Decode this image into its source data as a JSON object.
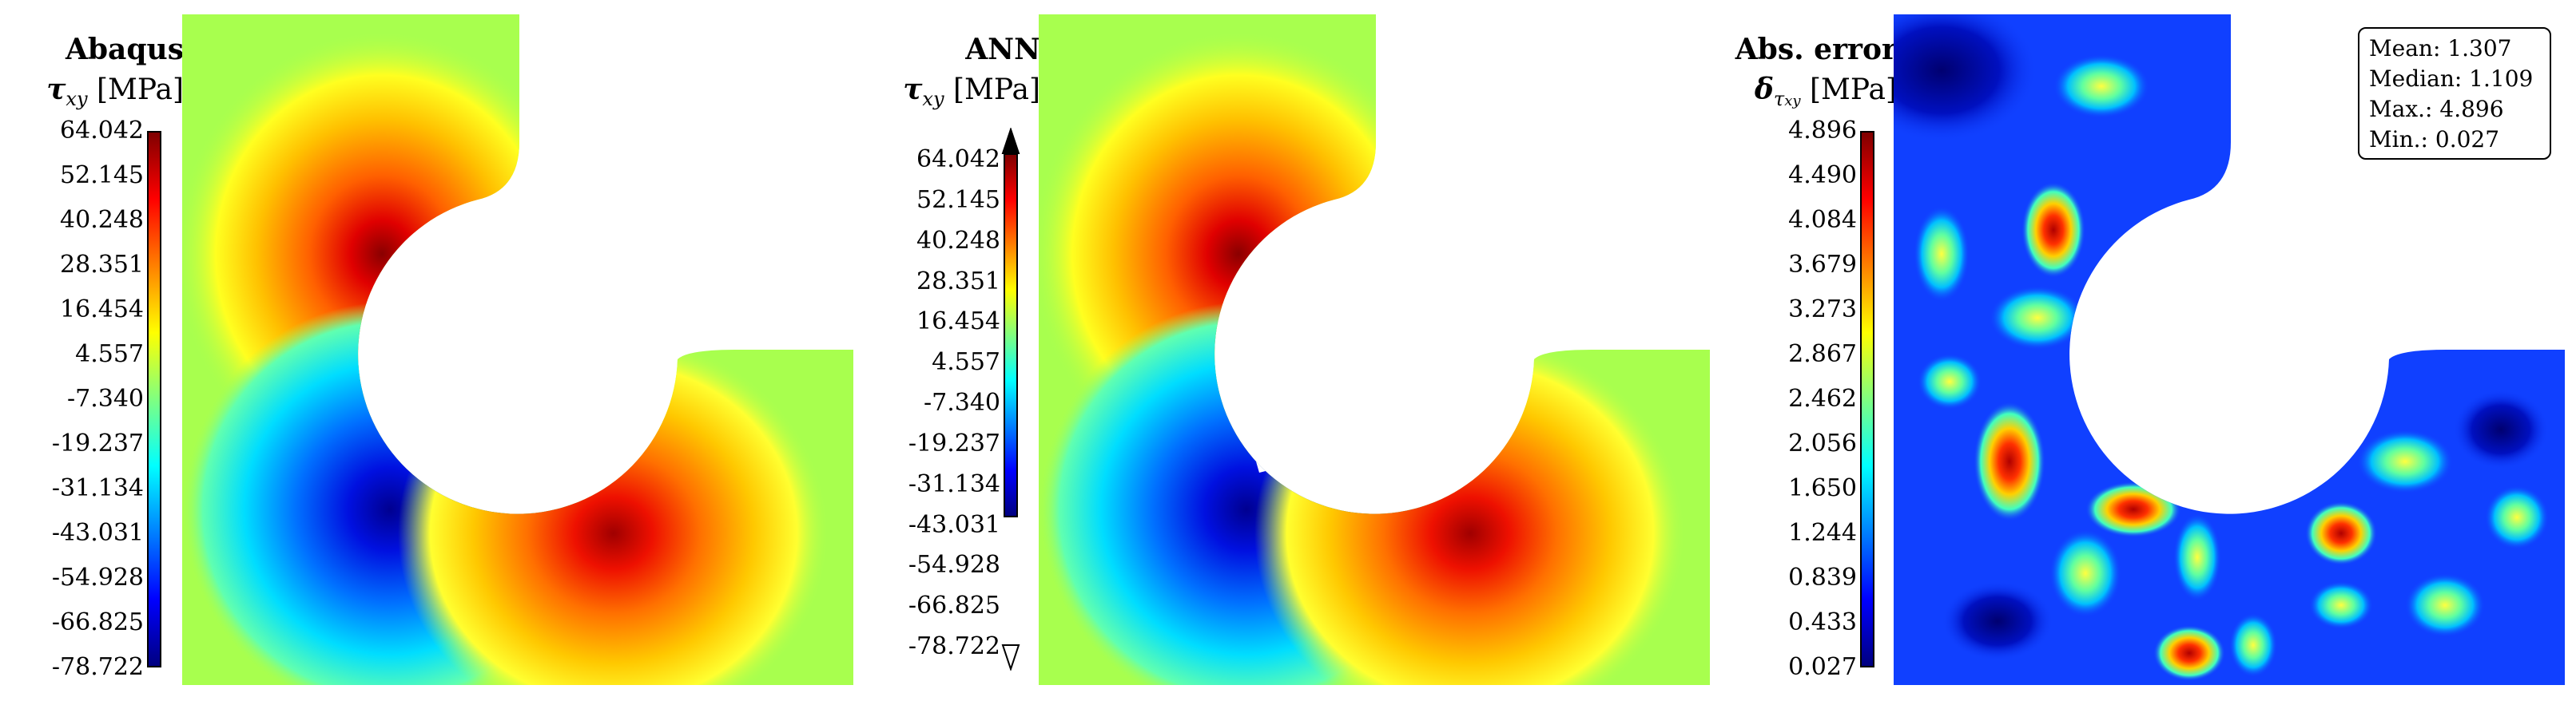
{
  "panels": [
    {
      "title": "Abaqus",
      "symbol": "τ",
      "subscript": "xy",
      "unit": "[MPa]",
      "ticks": [
        "64.042",
        "52.145",
        "40.248",
        "28.351",
        "16.454",
        "4.557",
        "-7.340",
        "-19.237",
        "-31.134",
        "-43.031",
        "-54.928",
        "-66.825",
        "-78.722"
      ]
    },
    {
      "title": "ANN",
      "symbol": "τ",
      "subscript": "xy",
      "unit": "[MPa]",
      "ticks": [
        "64.042",
        "52.145",
        "40.248",
        "28.351",
        "16.454",
        "4.557",
        "-7.340",
        "-19.237",
        "-31.134",
        "-43.031",
        "-54.928",
        "-66.825",
        "-78.722"
      ]
    },
    {
      "title": "Abs. error",
      "symbol": "δ",
      "subscript": "τ",
      "subscript2": "xy",
      "unit": "[MPa]",
      "ticks": [
        "4.896",
        "4.490",
        "4.084",
        "3.679",
        "3.273",
        "2.867",
        "2.462",
        "2.056",
        "1.650",
        "1.244",
        "0.839",
        "0.433",
        "0.027"
      ]
    }
  ],
  "stats": {
    "mean": "Mean: 1.307",
    "median": "Median: 1.109",
    "max": "Max.: 4.896",
    "min": "Min.: 0.027"
  },
  "colors": {
    "background_field": "#a8ff4e",
    "error_background": "#1040ff"
  }
}
